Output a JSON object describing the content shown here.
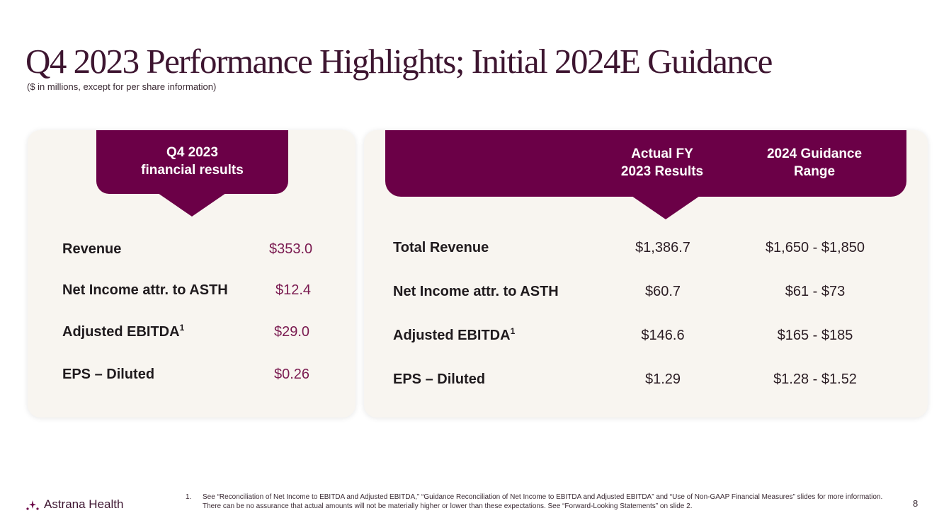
{
  "slide": {
    "title": "Q4 2023 Performance Highlights; Initial 2024E Guidance",
    "subtitle": "($ in millions, except for per share information)",
    "page_number": "8"
  },
  "colors": {
    "brand": "#6b0047",
    "card_bg": "#f8f5f0",
    "accent_value": "#7a1a50"
  },
  "quarter": {
    "header_line1": "Q4 2023",
    "header_line2": "financial results",
    "rows": [
      {
        "label": "Revenue",
        "sup": "",
        "value": "$353.0"
      },
      {
        "label": "Net Income attr. to ASTH",
        "sup": "",
        "value": "$12.4"
      },
      {
        "label": "Adjusted EBITDA",
        "sup": "1",
        "value": "$29.0"
      },
      {
        "label": "EPS – Diluted",
        "sup": "",
        "value": "$0.26"
      }
    ]
  },
  "annual": {
    "col1_line1": "Actual FY",
    "col1_line2": "2023 Results",
    "col2_line1": "2024 Guidance",
    "col2_line2": "Range",
    "rows": [
      {
        "label": "Total Revenue",
        "sup": "",
        "actual": "$1,386.7",
        "guidance": "$1,650 - $1,850"
      },
      {
        "label": "Net Income attr. to ASTH",
        "sup": "",
        "actual": "$60.7",
        "guidance": "$61 - $73"
      },
      {
        "label": "Adjusted EBITDA",
        "sup": "1",
        "actual": "$146.6",
        "guidance": "$165 - $185"
      },
      {
        "label": "EPS – Diluted",
        "sup": "",
        "actual": "$1.29",
        "guidance": "$1.28 - $1.52"
      }
    ]
  },
  "footer": {
    "logo_text": "Astrana Health",
    "logo_icon": "sparkle-dots-icon",
    "footnote_number": "1.",
    "footnote_text": "See “Reconciliation of Net Income to EBITDA and Adjusted EBITDA,” “Guidance Reconciliation of Net Income to EBITDA and Adjusted EBITDA” and “Use of Non-GAAP Financial Measures” slides for more information. There can be no assurance that actual amounts will not be materially higher or lower than these expectations. See “Forward-Looking Statements” on slide 2."
  }
}
